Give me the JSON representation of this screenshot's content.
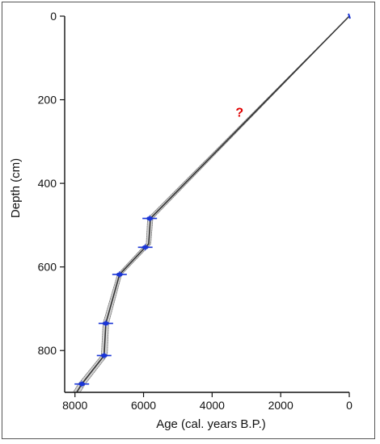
{
  "chart_data": {
    "type": "line",
    "title": "",
    "xlabel": "Age (cal. years B.P.)",
    "ylabel": "Depth (cm)",
    "xlim": [
      8300,
      0
    ],
    "ylim": [
      0,
      900
    ],
    "x_reversed": true,
    "y_reversed": true,
    "grid": false,
    "xticks": [
      8000,
      6000,
      4000,
      2000,
      0
    ],
    "yticks": [
      0,
      200,
      400,
      600,
      800
    ],
    "annotation": {
      "text": "?",
      "x": 3200,
      "y": 240,
      "color": "#e00000"
    },
    "series": [
      {
        "values_desc": "age-depth model (mean)",
        "color": "#333333",
        "x": [
          0,
          5800,
          5850,
          5950,
          6700,
          7100,
          7150,
          7800,
          7950
        ],
        "y": [
          0,
          484,
          545,
          553,
          618,
          735,
          812,
          880,
          900
        ]
      }
    ],
    "uncertainty_band": {
      "color": "#bbbbbb",
      "x": [
        0,
        5800,
        5850,
        5950,
        6700,
        7100,
        7150,
        7800,
        7950
      ],
      "lower": [
        0,
        5730,
        5790,
        5880,
        6640,
        7020,
        7060,
        7700,
        7850
      ],
      "upper": [
        0,
        5880,
        5920,
        6020,
        6760,
        7180,
        7230,
        7900,
        8050
      ]
    },
    "dated_samples": {
      "color": "#1a35d6",
      "points": [
        {
          "age": 0,
          "depth": 0
        },
        {
          "age": 5820,
          "depth": 484
        },
        {
          "age": 5950,
          "depth": 553
        },
        {
          "age": 6700,
          "depth": 618
        },
        {
          "age": 7100,
          "depth": 735
        },
        {
          "age": 7150,
          "depth": 812
        },
        {
          "age": 7800,
          "depth": 880
        }
      ]
    }
  }
}
